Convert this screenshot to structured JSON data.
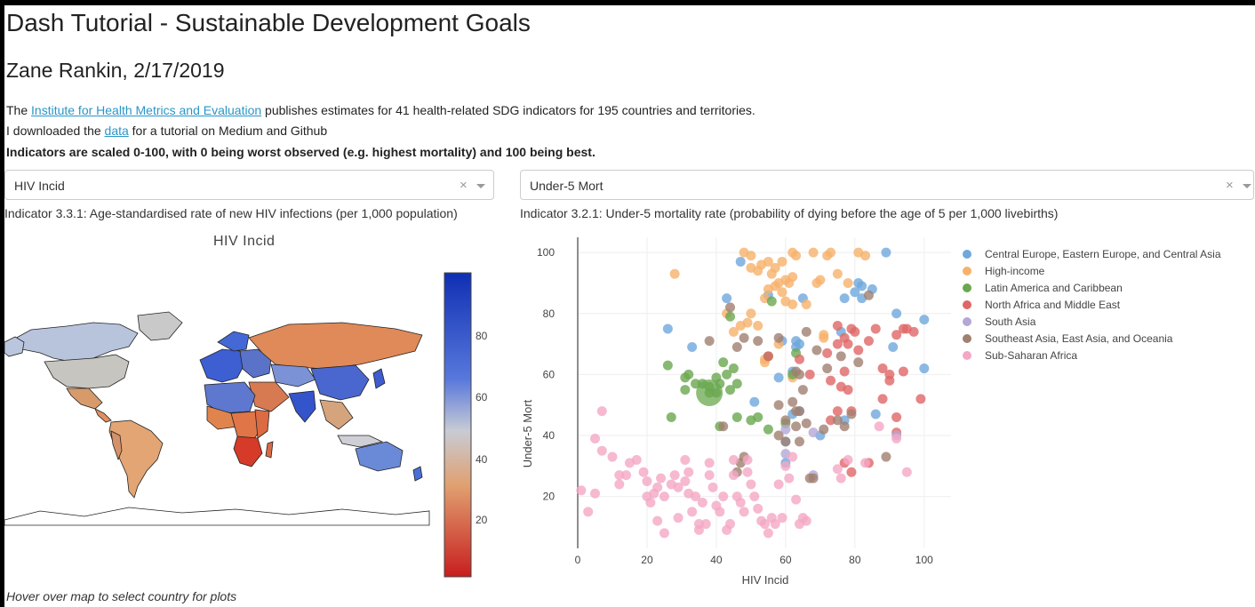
{
  "header": {
    "title": "Dash Tutorial - Sustainable Development Goals",
    "byline": "Zane Rankin, 2/17/2019"
  },
  "intro": {
    "line1_pre": "The ",
    "line1_link": "Institute for Health Metrics and Evaluation",
    "line1_post": " publishes estimates for 41 health-related SDG indicators for 195 countries and territories.",
    "line2_pre": "I downloaded the ",
    "line2_link": "data",
    "line2_post": " for a tutorial on Medium and Github",
    "line3": "Indicators are scaled 0-100, with 0 being worst observed (e.g. highest mortality) and 100 being best."
  },
  "dropdown_left": {
    "value": "HIV Incid",
    "clear": "×"
  },
  "dropdown_right": {
    "value": "Under-5 Mort",
    "clear": "×"
  },
  "indicator_left": "Indicator 3.3.1: Age-standardised rate of new HIV infections (per 1,000 population)",
  "indicator_right": "Indicator 3.2.1: Under-5 mortality rate (probability of dying before the age of 5 per 1,000 livebirths)",
  "map": {
    "title": "HIV Incid",
    "colorbar_ticks": [
      "80",
      "60",
      "40",
      "20"
    ],
    "hover_hint": "Hover over map to select country for plots"
  },
  "colors": {
    "link": "#2a96c8",
    "scale_low": "#d7301f",
    "scale_mid": "#c8c8c8",
    "scale_high": "#1f3fbf"
  },
  "chart_data": {
    "type": "scatter",
    "xlabel": "HIV Incid",
    "ylabel": "Under-5 Mort",
    "xlim": [
      0,
      108
    ],
    "ylim": [
      3,
      105
    ],
    "xticks": [
      0,
      20,
      40,
      60,
      80,
      100
    ],
    "yticks": [
      20,
      40,
      60,
      80,
      100
    ],
    "grid": true,
    "legend_position": "right",
    "series": [
      {
        "name": "Central Europe, Eastern Europe, and Central Asia",
        "color": "#6fa8dc",
        "points": [
          [
            47,
            97
          ],
          [
            89,
            100
          ],
          [
            81,
            90
          ],
          [
            82,
            89
          ],
          [
            85,
            88
          ],
          [
            80,
            87
          ],
          [
            77,
            85
          ],
          [
            82,
            85
          ],
          [
            55,
            86
          ],
          [
            65,
            85
          ],
          [
            43,
            85
          ],
          [
            92,
            80
          ],
          [
            100,
            78
          ],
          [
            26,
            75
          ],
          [
            76,
            74
          ],
          [
            33,
            69
          ],
          [
            59,
            71
          ],
          [
            63,
            71
          ],
          [
            64,
            70
          ],
          [
            63,
            69
          ],
          [
            91,
            69
          ],
          [
            58,
            59
          ],
          [
            62,
            61
          ],
          [
            100,
            62
          ],
          [
            51,
            51
          ],
          [
            62,
            47
          ],
          [
            64,
            48
          ],
          [
            86,
            47
          ],
          [
            77,
            45
          ],
          [
            70,
            40
          ],
          [
            60,
            38
          ],
          [
            60,
            31
          ]
        ]
      },
      {
        "name": "High-income",
        "color": "#f6b26b",
        "points": [
          [
            28,
            93
          ],
          [
            48,
            100
          ],
          [
            50,
            99
          ],
          [
            55,
            97
          ],
          [
            57,
            95
          ],
          [
            59,
            97
          ],
          [
            62,
            100
          ],
          [
            63,
            99
          ],
          [
            68,
            100
          ],
          [
            72,
            99
          ],
          [
            73,
            100
          ],
          [
            81,
            100
          ],
          [
            83,
            99
          ],
          [
            50,
            95
          ],
          [
            52,
            94
          ],
          [
            53,
            96
          ],
          [
            56,
            93
          ],
          [
            58,
            90
          ],
          [
            60,
            91
          ],
          [
            61,
            90
          ],
          [
            62,
            92
          ],
          [
            55,
            88
          ],
          [
            57,
            89
          ],
          [
            59,
            87
          ],
          [
            69,
            90
          ],
          [
            70,
            91
          ],
          [
            75,
            93
          ],
          [
            78,
            90
          ],
          [
            54,
            85
          ],
          [
            60,
            84
          ],
          [
            62,
            83
          ],
          [
            66,
            83
          ],
          [
            50,
            80
          ],
          [
            43,
            80
          ],
          [
            49,
            77
          ],
          [
            52,
            76
          ],
          [
            47,
            76
          ],
          [
            45,
            74
          ],
          [
            71,
            73
          ],
          [
            71,
            72
          ],
          [
            58,
            70
          ],
          [
            54,
            65
          ],
          [
            54,
            64
          ],
          [
            62,
            59
          ]
        ]
      },
      {
        "name": "Latin America and Caribbean",
        "color": "#6aa84f",
        "points": [
          [
            56,
            84
          ],
          [
            44,
            79
          ],
          [
            26,
            63
          ],
          [
            43,
            60
          ],
          [
            40,
            59
          ],
          [
            45,
            62
          ],
          [
            34,
            57
          ],
          [
            36,
            57
          ],
          [
            38,
            56
          ],
          [
            41,
            57
          ],
          [
            46,
            57
          ],
          [
            31,
            55
          ],
          [
            27,
            46
          ],
          [
            46,
            46
          ],
          [
            50,
            45
          ],
          [
            52,
            46
          ],
          [
            41,
            43
          ],
          [
            55,
            42
          ],
          [
            60,
            44
          ],
          [
            38,
            54
          ],
          [
            63,
            67
          ],
          [
            62,
            60
          ],
          [
            55,
            66
          ],
          [
            42,
            64
          ],
          [
            32,
            60
          ],
          [
            31,
            59
          ],
          [
            40,
            54
          ],
          [
            44,
            55
          ]
        ]
      },
      {
        "name": "North Africa and Middle East",
        "color": "#e06666",
        "points": [
          [
            88,
            62
          ],
          [
            94,
            75
          ],
          [
            95,
            75
          ],
          [
            97,
            74
          ],
          [
            92,
            73
          ],
          [
            86,
            75
          ],
          [
            84,
            71
          ],
          [
            75,
            70
          ],
          [
            81,
            68
          ],
          [
            77,
            72
          ],
          [
            78,
            70
          ],
          [
            72,
            67
          ],
          [
            79,
            75
          ],
          [
            75,
            76
          ],
          [
            80,
            74
          ],
          [
            67,
            60
          ],
          [
            73,
            58
          ],
          [
            76,
            56
          ],
          [
            75,
            48
          ],
          [
            73,
            45
          ],
          [
            79,
            48
          ],
          [
            88,
            52
          ],
          [
            92,
            46
          ],
          [
            99,
            52
          ],
          [
            94,
            61
          ],
          [
            90,
            58
          ],
          [
            77,
            61
          ],
          [
            78,
            55
          ],
          [
            64,
            65
          ],
          [
            55,
            66
          ],
          [
            77,
            31
          ],
          [
            84,
            31
          ],
          [
            79,
            28
          ],
          [
            92,
            41
          ],
          [
            90,
            60
          ]
        ]
      },
      {
        "name": "South Asia",
        "color": "#b4a7d6",
        "points": [
          [
            60,
            42
          ],
          [
            68,
            41
          ],
          [
            60,
            34
          ],
          [
            92,
            40
          ],
          [
            68,
            27
          ]
        ]
      },
      {
        "name": "Southeast Asia, East Asia, and Oceania",
        "color": "#a08070",
        "points": [
          [
            38,
            71
          ],
          [
            44,
            82
          ],
          [
            46,
            69
          ],
          [
            48,
            72
          ],
          [
            52,
            71
          ],
          [
            58,
            72
          ],
          [
            66,
            74
          ],
          [
            69,
            68
          ],
          [
            72,
            62
          ],
          [
            76,
            66
          ],
          [
            81,
            64
          ],
          [
            84,
            86
          ],
          [
            63,
            61
          ],
          [
            64,
            60
          ],
          [
            65,
            55
          ],
          [
            62,
            51
          ],
          [
            64,
            48
          ],
          [
            60,
            45
          ],
          [
            63,
            43
          ],
          [
            66,
            44
          ],
          [
            58,
            40
          ],
          [
            60,
            38
          ],
          [
            64,
            38
          ],
          [
            67,
            26
          ],
          [
            68,
            26
          ],
          [
            71,
            42
          ],
          [
            75,
            45
          ],
          [
            46,
            28
          ],
          [
            47,
            31
          ],
          [
            48,
            33
          ],
          [
            89,
            33
          ],
          [
            42,
            43
          ],
          [
            77,
            43
          ],
          [
            79,
            47
          ],
          [
            58,
            50
          ],
          [
            63,
            48
          ]
        ]
      },
      {
        "name": "Sub-Saharan Africa",
        "color": "#f4a7c4",
        "points": [
          [
            1,
            22
          ],
          [
            5,
            21
          ],
          [
            5,
            39
          ],
          [
            7,
            35
          ],
          [
            7,
            48
          ],
          [
            12,
            27
          ],
          [
            12,
            24
          ],
          [
            15,
            31
          ],
          [
            17,
            32
          ],
          [
            19,
            28
          ],
          [
            20,
            25
          ],
          [
            20,
            20
          ],
          [
            21,
            18
          ],
          [
            22,
            21
          ],
          [
            23,
            12
          ],
          [
            23,
            23
          ],
          [
            24,
            26
          ],
          [
            25,
            20
          ],
          [
            25,
            8
          ],
          [
            27,
            24
          ],
          [
            28,
            27
          ],
          [
            29,
            23
          ],
          [
            29,
            13
          ],
          [
            31,
            32
          ],
          [
            31,
            25
          ],
          [
            32,
            28
          ],
          [
            32,
            21
          ],
          [
            33,
            15
          ],
          [
            34,
            20
          ],
          [
            35,
            11
          ],
          [
            35,
            9
          ],
          [
            36,
            18
          ],
          [
            37,
            11
          ],
          [
            38,
            27
          ],
          [
            38,
            31
          ],
          [
            39,
            23
          ],
          [
            40,
            17
          ],
          [
            41,
            15
          ],
          [
            42,
            20
          ],
          [
            43,
            9
          ],
          [
            44,
            11
          ],
          [
            45,
            27
          ],
          [
            45,
            32
          ],
          [
            46,
            20
          ],
          [
            47,
            18
          ],
          [
            48,
            15
          ],
          [
            49,
            32
          ],
          [
            49,
            28
          ],
          [
            50,
            24
          ],
          [
            51,
            20
          ],
          [
            52,
            16
          ],
          [
            53,
            12
          ],
          [
            54,
            11
          ],
          [
            55,
            8
          ],
          [
            56,
            13
          ],
          [
            57,
            11
          ],
          [
            58,
            24
          ],
          [
            59,
            13
          ],
          [
            60,
            30
          ],
          [
            61,
            26
          ],
          [
            62,
            33
          ],
          [
            63,
            19
          ],
          [
            64,
            11
          ],
          [
            65,
            13
          ],
          [
            66,
            12
          ],
          [
            75,
            29
          ],
          [
            76,
            26
          ],
          [
            78,
            32
          ],
          [
            83,
            31
          ],
          [
            87,
            43
          ],
          [
            92,
            39
          ],
          [
            95,
            28
          ],
          [
            3,
            15
          ],
          [
            10,
            33
          ],
          [
            14,
            27
          ]
        ]
      }
    ],
    "bubbles": [
      {
        "series": "Latin America and Caribbean",
        "x": 38,
        "y": 54
      }
    ]
  }
}
